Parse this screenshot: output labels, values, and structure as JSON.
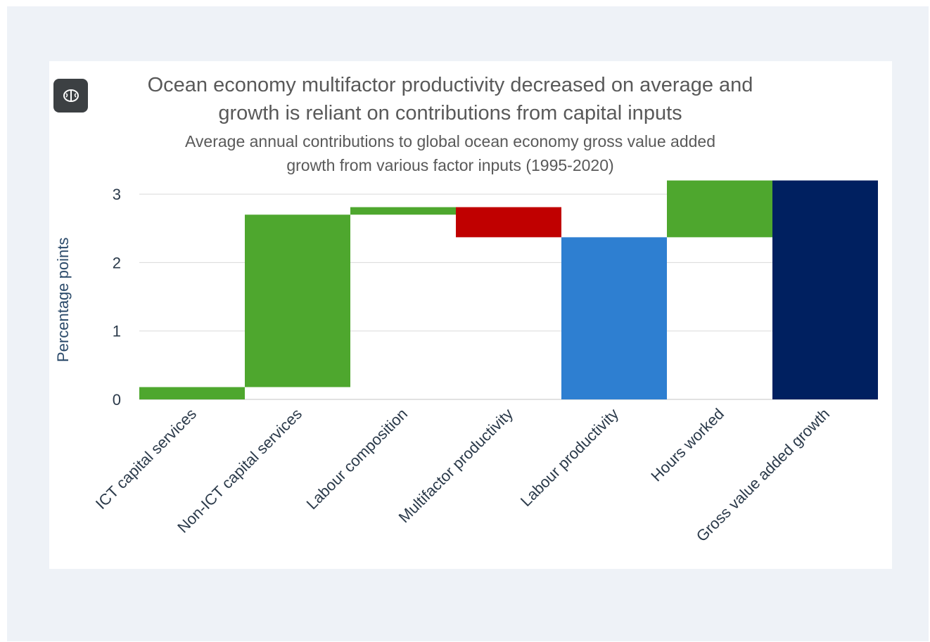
{
  "badge": {
    "icon": "brain-icon"
  },
  "colors": {
    "increase": "#4ea72e",
    "decrease": "#c00000",
    "subtotal": "#2e7fd1",
    "total": "#002060",
    "axis_text": "#2b3a4a",
    "gridline": "#d9d9d9"
  },
  "chart_data": {
    "type": "bar",
    "subtype": "waterfall",
    "title": "Ocean economy multifactor productivity decreased on average and\ngrowth is reliant on contributions from capital inputs",
    "subtitle": "Average annual contributions to global ocean economy gross value added\ngrowth from various factor inputs (1995-2020)",
    "xlabel": "",
    "ylabel": "Percentage points",
    "ylim": [
      0,
      3.2
    ],
    "yticks": [
      0,
      1,
      2,
      3
    ],
    "grid": true,
    "categories": [
      "ICT capital services",
      "Non-ICT capital services",
      "Labour composition",
      "Multifactor productivity",
      "Labour productivity",
      "Hours worked",
      "Gross value added growth"
    ],
    "bars": [
      {
        "category": "ICT capital services",
        "kind": "increase",
        "start": 0,
        "end": 0.18
      },
      {
        "category": "Non-ICT capital services",
        "kind": "increase",
        "start": 0.18,
        "end": 2.7
      },
      {
        "category": "Labour composition",
        "kind": "increase",
        "start": 2.7,
        "end": 2.81
      },
      {
        "category": "Multifactor productivity",
        "kind": "decrease",
        "start": 2.81,
        "end": 2.37
      },
      {
        "category": "Labour productivity",
        "kind": "subtotal",
        "start": 0,
        "end": 2.37
      },
      {
        "category": "Hours worked",
        "kind": "increase",
        "start": 2.37,
        "end": 3.2
      },
      {
        "category": "Gross value added growth",
        "kind": "total",
        "start": 0,
        "end": 3.2
      }
    ]
  }
}
